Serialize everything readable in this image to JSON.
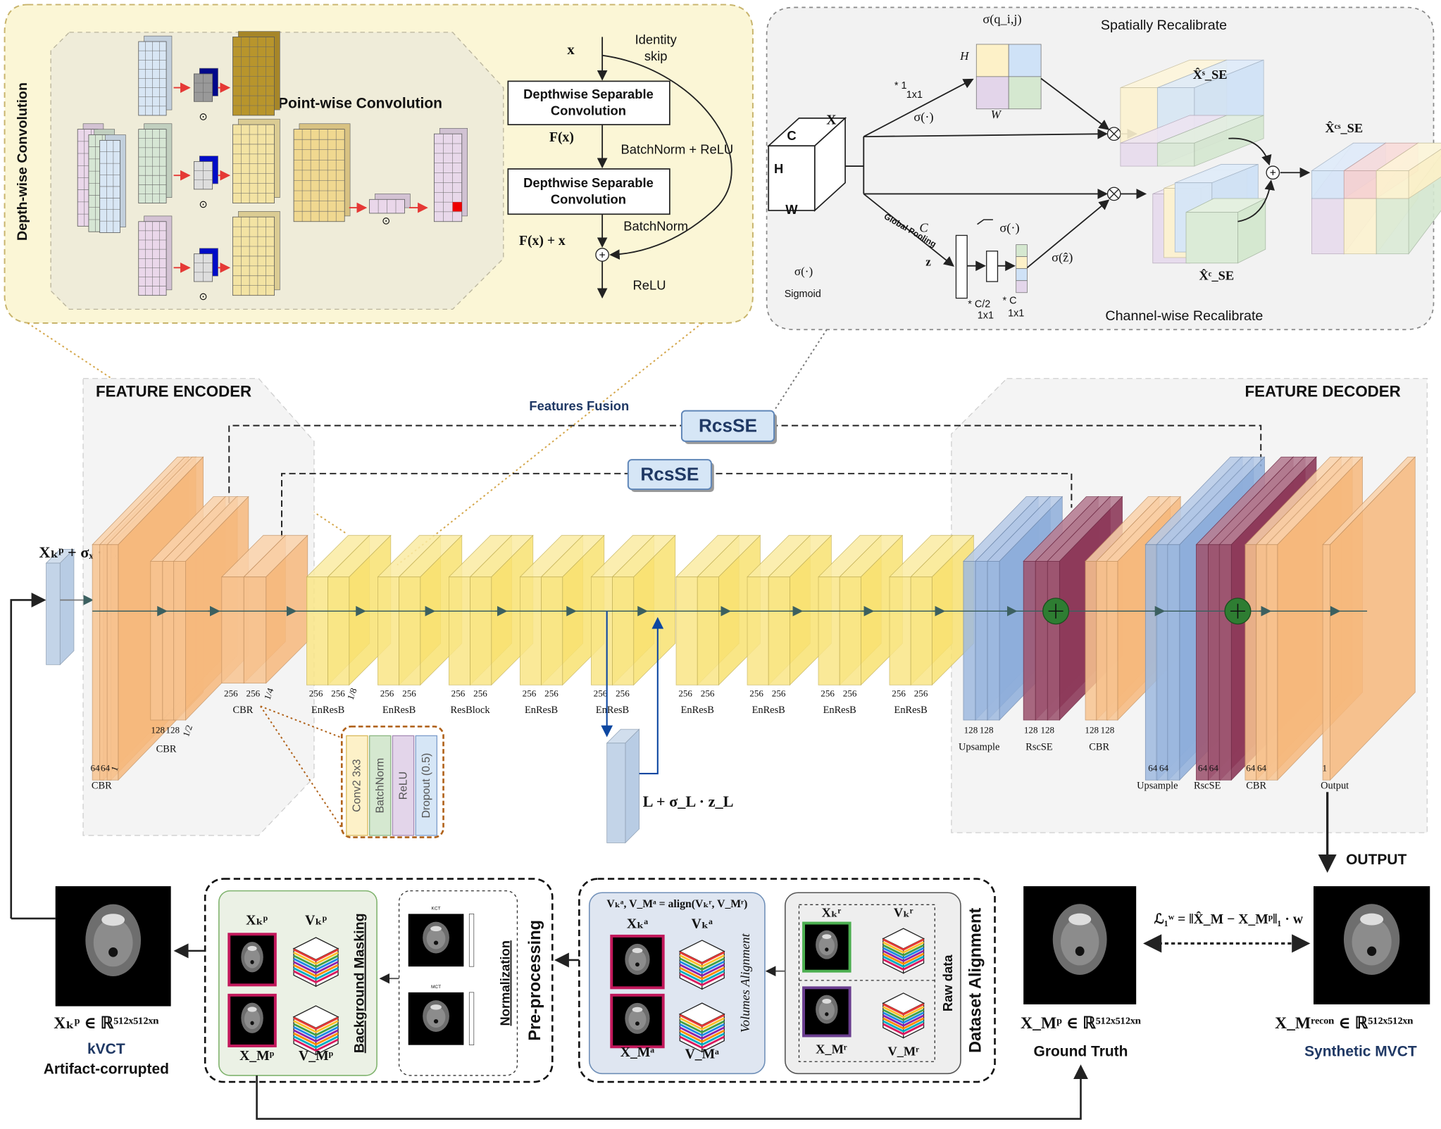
{
  "detail_resblock": {
    "depthwise_label": "Depth-wise Convolution",
    "pointwise_label": "Point-wise Convolution",
    "input": "x",
    "identity_skip": [
      "Identity",
      "skip"
    ],
    "dsc_1": [
      "Depthwise Separable",
      "Convolution"
    ],
    "fx": "F(x)",
    "bn_relu": "BatchNorm + ReLU",
    "dsc_2": [
      "Depthwise Separable",
      "Convolution"
    ],
    "bn": "BatchNorm",
    "sum": "F(x) + x",
    "relu": "ReLU"
  },
  "detail_rcsse": {
    "sigma_q": "σ(q_i,j)",
    "spatial_title": "Spatially Recalibrate",
    "h": "H",
    "w": "W",
    "conv1": "* 1",
    "conv1_size": "1x1",
    "sigma_1": "σ(·)",
    "x": "X",
    "cube": [
      "C",
      "H",
      "W"
    ],
    "x_s": "X̂ˢ_SE",
    "x_cs": "X̂ᶜˢ_SE",
    "global_pooling": "Global Pooling",
    "c": "C",
    "z": "z",
    "sigma_2": "σ(·)",
    "sigma_z": "σ(ẑ)",
    "sigma_3": "σ(·)",
    "sigmoid": "Sigmoid",
    "conv2": "* C/2",
    "conv2_size": "1x1",
    "conv3": "* C",
    "conv3_size": "1x1",
    "x_c": "X̂ᶜ_SE",
    "channel_title": "Channel-wise Recalibrate"
  },
  "network": {
    "encoder_title": "FEATURE ENCODER",
    "decoder_title": "FEATURE DECODER",
    "fusion": "Features Fusion",
    "rcsse": [
      "RcsSE",
      "RcsSE"
    ],
    "input": "Xₖᵖ + σₓ · zₓ",
    "latent": "L + σ_L · z_L",
    "blocks": [
      {
        "label": "CBR",
        "channels": [
          "64",
          "64",
          "1"
        ]
      },
      {
        "label": "CBR",
        "channels": [
          "128",
          "128",
          "1/2"
        ]
      },
      {
        "label": "CBR",
        "channels": [
          "256",
          "256",
          "1/4"
        ]
      },
      {
        "label": "EnResB",
        "channels": [
          "256",
          "256",
          "1/8"
        ]
      },
      {
        "label": "EnResB",
        "channels": [
          "256",
          "256"
        ]
      },
      {
        "label": "ResBlock",
        "channels": [
          "256",
          "256"
        ]
      },
      {
        "label": "EnResB",
        "channels": [
          "256",
          "256"
        ]
      },
      {
        "label": "EnResB",
        "channels": [
          "256",
          "256"
        ]
      },
      {
        "label": "EnResB",
        "channels": [
          "256",
          "256"
        ]
      },
      {
        "label": "EnResB",
        "channels": [
          "256",
          "256"
        ]
      },
      {
        "label": "EnResB",
        "channels": [
          "256",
          "256"
        ]
      },
      {
        "label": "EnResB",
        "channels": [
          "256",
          "256"
        ]
      },
      {
        "label": "Upsample",
        "channels": [
          "128",
          "128"
        ]
      },
      {
        "label": "RscSE",
        "channels": [
          "128",
          "128"
        ]
      },
      {
        "label": "CBR",
        "channels": [
          "128",
          "128"
        ]
      },
      {
        "label": "Upsample",
        "channels": [
          "64",
          "64"
        ]
      },
      {
        "label": "RscSE",
        "channels": [
          "64",
          "64"
        ]
      },
      {
        "label": "CBR",
        "channels": [
          "64",
          "64"
        ]
      },
      {
        "label": "Output",
        "channels": [
          "1"
        ]
      }
    ],
    "cbr_detail": [
      "Conv2  3x3",
      "BatchNorm",
      "ReLU",
      "Dropout  (0.5)"
    ],
    "output": "OUTPUT"
  },
  "pipeline": {
    "kvct_formula": "Xₖᵖ ∈ ℝ⁵¹²ˣ⁵¹²ˣⁿ",
    "kvct": "kVCT",
    "artifact": "Artifact-corrupted",
    "preprocessing": {
      "title": "Pre-processing",
      "masking": "Background Masking",
      "normalization": "Normalization",
      "labels": [
        "Xₖᵖ",
        "Vₖᵖ",
        "X_Mᵖ",
        "V_Mᵖ"
      ],
      "norm_titles": [
        "KCT",
        "MCT"
      ]
    },
    "alignment": {
      "title": "Dataset Alignment",
      "formula": "Vₖᵃ, V_Mᵃ = align(Vₖʳ, V_Mʳ)",
      "aligned_labels": [
        "Xₖᵃ",
        "Vₖᵃ",
        "X_Mᵃ",
        "V_Mᵃ"
      ],
      "volumes_alignment": "Volumes Alignment",
      "raw_labels": [
        "Xₖʳ",
        "Vₖʳ",
        "X_Mʳ",
        "V_Mʳ"
      ],
      "raw_data": "Raw data"
    },
    "ground_truth_formula": "X_Mᵖ ∈ ℝ⁵¹²ˣ⁵¹²ˣⁿ",
    "ground_truth": "Ground Truth",
    "loss": "ℒ₁ʷ = ‖X̂_M − X_Mᵖ‖₁ · w",
    "synthetic_formula": "X_Mʳᵉᶜᵒⁿ ∈ ℝ⁵¹²ˣ⁵¹²ˣⁿ",
    "synthetic": "Synthetic MVCT"
  }
}
